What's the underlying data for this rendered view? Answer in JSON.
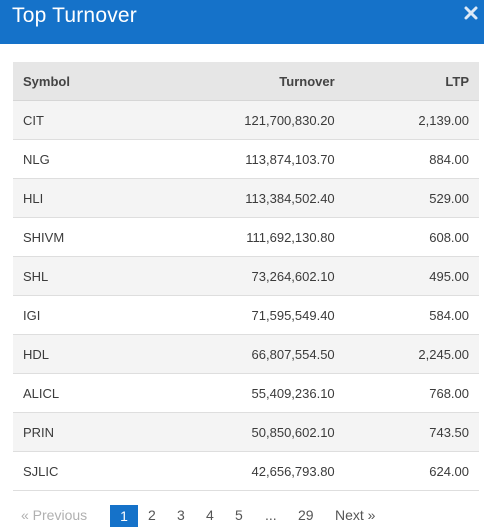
{
  "dialog": {
    "title": "Top Turnover",
    "close_icon": "close-icon"
  },
  "table": {
    "columns": [
      "Symbol",
      "Turnover",
      "LTP"
    ],
    "rows": [
      {
        "symbol": "CIT",
        "turnover": "121,700,830.20",
        "ltp": "2,139.00"
      },
      {
        "symbol": "NLG",
        "turnover": "113,874,103.70",
        "ltp": "884.00"
      },
      {
        "symbol": "HLI",
        "turnover": "113,384,502.40",
        "ltp": "529.00"
      },
      {
        "symbol": "SHIVM",
        "turnover": "111,692,130.80",
        "ltp": "608.00"
      },
      {
        "symbol": "SHL",
        "turnover": "73,264,602.10",
        "ltp": "495.00"
      },
      {
        "symbol": "IGI",
        "turnover": "71,595,549.40",
        "ltp": "584.00"
      },
      {
        "symbol": "HDL",
        "turnover": "66,807,554.50",
        "ltp": "2,245.00"
      },
      {
        "symbol": "ALICL",
        "turnover": "55,409,236.10",
        "ltp": "768.00"
      },
      {
        "symbol": "PRIN",
        "turnover": "50,850,602.10",
        "ltp": "743.50"
      },
      {
        "symbol": "SJLIC",
        "turnover": "42,656,793.80",
        "ltp": "624.00"
      }
    ]
  },
  "pagination": {
    "prev_label": "« Previous",
    "pages": [
      "1",
      "2",
      "3",
      "4",
      "5"
    ],
    "ellipsis": "...",
    "last_page": "29",
    "next_label": "Next »",
    "active_page": "1"
  }
}
